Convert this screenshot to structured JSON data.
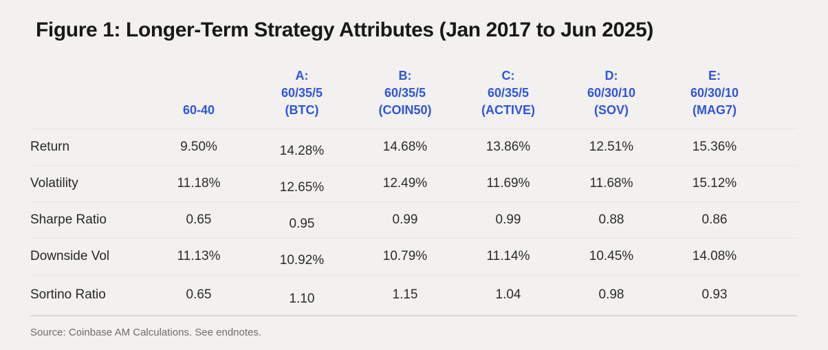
{
  "title": "Figure 1: Longer-Term Strategy Attributes (Jan 2017 to Jun 2025)",
  "source": {
    "text": "Source: Coinbase AM Calculations. See endnotes."
  },
  "colors": {
    "background": "#f2f1ef",
    "accent_blue": "#2f53e0",
    "title_text": "#191919",
    "body_text": "#2b2b2a",
    "muted_text": "#6e6d6b",
    "divider": "#e4e3e1",
    "divider_strong": "#d9d8d6"
  },
  "table": {
    "columns": [
      "60-40",
      "A:\n60/35/5\n(BTC)",
      "B:\n60/35/5\n(COIN50)",
      "C:\n60/35/5\n(ACTIVE)",
      "D:\n60/30/10\n(SOV)",
      "E:\n60/30/10\n(MAG7)"
    ],
    "rows": [
      {
        "label": "Return",
        "values": [
          "9.50%",
          "14.28%",
          "14.68%",
          "13.86%",
          "12.51%",
          "15.36%"
        ]
      },
      {
        "label": "Volatility",
        "values": [
          "11.18%",
          "12.65%",
          "12.49%",
          "11.69%",
          "11.68%",
          "15.12%"
        ]
      },
      {
        "label": "Sharpe Ratio",
        "values": [
          "0.65",
          "0.95",
          "0.99",
          "0.99",
          "0.88",
          "0.86"
        ]
      },
      {
        "label": "Downside Vol",
        "values": [
          "11.13%",
          "10.92%",
          "10.79%",
          "11.14%",
          "10.45%",
          "14.08%"
        ]
      },
      {
        "label": "Sortino Ratio",
        "values": [
          "0.65",
          "1.10",
          "1.15",
          "1.04",
          "0.98",
          "0.93"
        ]
      }
    ]
  },
  "chart_data": {
    "type": "table",
    "title": "Figure 1: Longer-Term Strategy Attributes (Jan 2017 to Jun 2025)",
    "row_labels": [
      "Return",
      "Volatility",
      "Sharpe Ratio",
      "Downside Vol",
      "Sortino Ratio"
    ],
    "row_units": [
      "%",
      "%",
      "",
      "%",
      ""
    ],
    "columns": [
      "60-40",
      "A: 60/35/5 (BTC)",
      "B: 60/35/5 (COIN50)",
      "C: 60/35/5 (ACTIVE)",
      "D: 60/30/10 (SOV)",
      "E: 60/30/10 (MAG7)"
    ],
    "series": [
      {
        "name": "60-40",
        "values": [
          9.5,
          11.18,
          0.65,
          11.13,
          0.65
        ]
      },
      {
        "name": "A: 60/35/5 (BTC)",
        "values": [
          14.28,
          12.65,
          0.95,
          10.92,
          1.1
        ]
      },
      {
        "name": "B: 60/35/5 (COIN50)",
        "values": [
          14.68,
          12.49,
          0.99,
          10.79,
          1.15
        ]
      },
      {
        "name": "C: 60/35/5 (ACTIVE)",
        "values": [
          13.86,
          11.69,
          0.99,
          11.14,
          1.04
        ]
      },
      {
        "name": "D: 60/30/10 (SOV)",
        "values": [
          12.51,
          11.68,
          0.88,
          10.45,
          0.98
        ]
      },
      {
        "name": "E: 60/30/10 (MAG7)",
        "values": [
          15.36,
          15.12,
          0.86,
          14.08,
          0.93
        ]
      }
    ],
    "source": "Source: Coinbase AM Calculations. See endnotes."
  }
}
